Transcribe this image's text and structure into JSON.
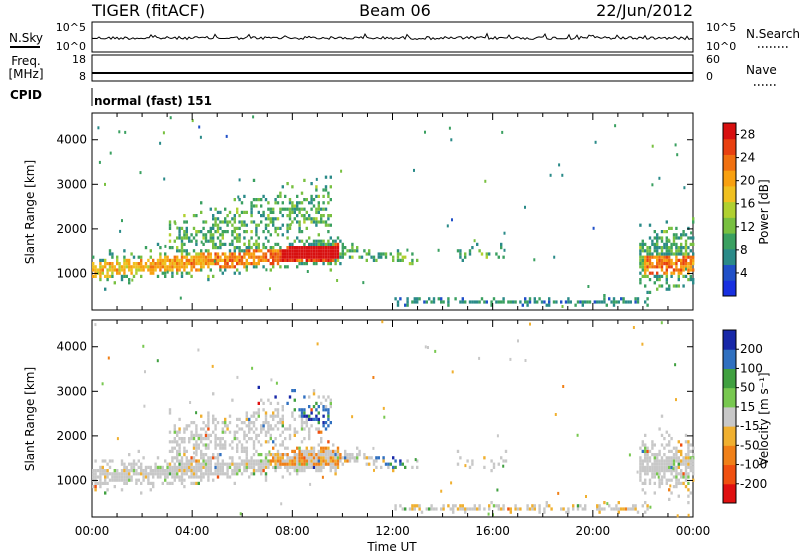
{
  "header": {
    "radar": "TIGER (fitACF)",
    "beam": "Beam 06",
    "date": "22/Jun/2012"
  },
  "param_panels": {
    "nsky_label": "N.Sky",
    "nsky_ticks": [
      "10^5",
      "10^0"
    ],
    "nsearch_label": "N.Search",
    "nsearch_ticks": [
      "10^5",
      "10^0"
    ],
    "freq_label": "Freq.",
    "freq_unit": "[MHz]",
    "freq_ticks": [
      "18",
      "8"
    ],
    "nave_label": "Nave",
    "nave_ticks": [
      "60",
      "0"
    ],
    "cpid_label": "CPID",
    "cpid_value": "normal (fast) 151"
  },
  "chart_data": [
    {
      "type": "heatmap",
      "title": "",
      "ylabel": "Slant Range [km]",
      "xlabel": "",
      "ylim": [
        180,
        4600
      ],
      "xlim": [
        0,
        24
      ],
      "yticks": [
        "1000",
        "2000",
        "3000",
        "4000"
      ],
      "colorbar": {
        "label": "Power [dB]",
        "ticks": [
          "4",
          "8",
          "12",
          "16",
          "20",
          "24",
          "28"
        ],
        "range": [
          0,
          30
        ],
        "colors": [
          "#1830e0",
          "#2050c8",
          "#2a8a88",
          "#3aa060",
          "#78c040",
          "#b0d030",
          "#f0c020",
          "#f8a010",
          "#f07010",
          "#e84010",
          "#d81010"
        ]
      },
      "features": [
        {
          "name": "morning scatter band",
          "t_range": [
            0,
            9.5
          ],
          "range_km": [
            800,
            2500
          ],
          "peak_power_db": 24
        },
        {
          "name": "intense patch",
          "t_range": [
            7.5,
            9.5
          ],
          "range_km": [
            1300,
            1700
          ],
          "peak_power_db": 28
        },
        {
          "name": "ground scatter strip",
          "t_range": [
            12,
            22
          ],
          "range_km": [
            250,
            450
          ],
          "peak_power_db": 10
        },
        {
          "name": "late evening scatter",
          "t_range": [
            22,
            24
          ],
          "range_km": [
            900,
            2800
          ],
          "peak_power_db": 26
        }
      ]
    },
    {
      "type": "heatmap",
      "title": "",
      "ylabel": "Slant Range [km]",
      "xlabel": "Time UT",
      "ylim": [
        180,
        4600
      ],
      "xlim": [
        0,
        24
      ],
      "yticks": [
        "1000",
        "2000",
        "3000",
        "4000"
      ],
      "xticks": [
        "00:00",
        "04:00",
        "08:00",
        "12:00",
        "16:00",
        "20:00",
        "00:00"
      ],
      "colorbar": {
        "label": "Velocity [m s⁻¹]",
        "ticks": [
          "200",
          "100",
          "50",
          "15",
          "-15",
          "-50",
          "-100",
          "-200"
        ],
        "range": [
          -250,
          250
        ],
        "colors": [
          "#e01010",
          "#f05010",
          "#f08018",
          "#f0b030",
          "#c8c8c8",
          "#78c850",
          "#40a040",
          "#3070c0",
          "#1828a8"
        ]
      },
      "features": [
        {
          "name": "morning mixed velocities",
          "t_range": [
            0,
            9.5
          ],
          "range_km": [
            800,
            2500
          ],
          "velocity_ms": 0
        },
        {
          "name": "receding streak",
          "t_range": [
            6,
            12.5
          ],
          "range_km": [
            1200,
            3400
          ],
          "velocity_ms": 150
        },
        {
          "name": "ground scatter strip",
          "t_range": [
            12,
            22
          ],
          "range_km": [
            250,
            450
          ],
          "velocity_ms": -20
        },
        {
          "name": "late evening scatter",
          "t_range": [
            22,
            24
          ],
          "range_km": [
            900,
            2800
          ],
          "velocity_ms": 0
        }
      ]
    }
  ]
}
